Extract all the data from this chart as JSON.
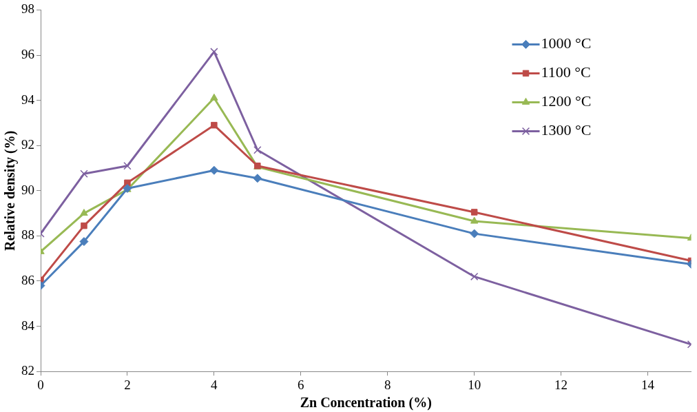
{
  "chart_data": {
    "type": "line",
    "xlabel": "Zn Concentration (%)",
    "ylabel": "Relative density (%)",
    "x": [
      0,
      1,
      2,
      4,
      5,
      10,
      15
    ],
    "xlim": [
      0,
      15
    ],
    "xticks": [
      0,
      2,
      4,
      6,
      8,
      10,
      12,
      14
    ],
    "ylim": [
      82,
      98
    ],
    "yticks": [
      82,
      84,
      86,
      88,
      90,
      92,
      94,
      96,
      98
    ],
    "grid": false,
    "legend": "top right",
    "line_style": "solid",
    "series": [
      {
        "name": "1000 °C",
        "color": "#4a7ebb",
        "marker": "diamond",
        "values": [
          85.8,
          87.75,
          90.1,
          90.9,
          90.55,
          88.1,
          86.75
        ]
      },
      {
        "name": "1100 °C",
        "color": "#be4b48",
        "marker": "square",
        "values": [
          86.05,
          88.45,
          90.35,
          92.9,
          91.1,
          89.05,
          86.9
        ]
      },
      {
        "name": "1200 °C",
        "color": "#98b954",
        "marker": "triangle",
        "values": [
          87.3,
          89.0,
          90.05,
          94.1,
          91.05,
          88.65,
          87.9
        ]
      },
      {
        "name": "1300 °C",
        "color": "#7d60a0",
        "marker": "cross",
        "values": [
          88.1,
          90.75,
          91.1,
          96.15,
          91.8,
          86.2,
          83.2
        ]
      }
    ]
  }
}
